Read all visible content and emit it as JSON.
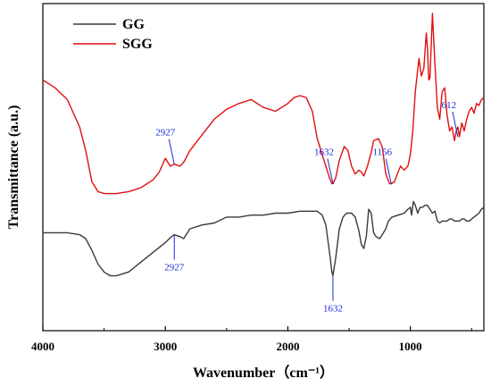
{
  "chart_data": {
    "type": "line",
    "xlabel": "Wavenumber（cm⁻¹）",
    "ylabel": "Transmittance (a.u.)",
    "xlim": [
      4000,
      400
    ],
    "x_reversed": true,
    "x_ticks": [
      4000,
      3000,
      2000,
      1000
    ],
    "x_tick_labels": [
      "4000",
      "3000",
      "2000",
      "1000"
    ],
    "y_ticks_shown": false,
    "grid": false,
    "legend_position": "top-left",
    "colors": {
      "GG": "#3a3a3a",
      "SGG": "#e01010",
      "annotation": "#1a2bd6"
    },
    "series": [
      {
        "name": "SGG",
        "x": [
          4000,
          3900,
          3800,
          3700,
          3650,
          3600,
          3550,
          3500,
          3400,
          3300,
          3200,
          3100,
          3050,
          3000,
          2960,
          2927,
          2880,
          2850,
          2800,
          2700,
          2600,
          2500,
          2400,
          2300,
          2200,
          2100,
          2000,
          1950,
          1900,
          1850,
          1800,
          1760,
          1700,
          1660,
          1640,
          1632,
          1610,
          1580,
          1540,
          1510,
          1480,
          1450,
          1420,
          1400,
          1380,
          1350,
          1320,
          1300,
          1260,
          1230,
          1200,
          1170,
          1156,
          1130,
          1100,
          1080,
          1050,
          1020,
          1000,
          980,
          960,
          930,
          910,
          890,
          870,
          860,
          850,
          840,
          820,
          800,
          780,
          760,
          740,
          720,
          700,
          680,
          660,
          640,
          625,
          612,
          600,
          580,
          560,
          540,
          520,
          500,
          480,
          460,
          440,
          420,
          400
        ],
        "y": [
          0.86,
          0.82,
          0.76,
          0.62,
          0.5,
          0.34,
          0.29,
          0.28,
          0.28,
          0.29,
          0.31,
          0.35,
          0.39,
          0.46,
          0.42,
          0.43,
          0.42,
          0.44,
          0.5,
          0.58,
          0.66,
          0.71,
          0.74,
          0.76,
          0.72,
          0.7,
          0.74,
          0.77,
          0.78,
          0.77,
          0.7,
          0.56,
          0.44,
          0.36,
          0.33,
          0.33,
          0.36,
          0.45,
          0.52,
          0.5,
          0.42,
          0.38,
          0.4,
          0.39,
          0.37,
          0.42,
          0.49,
          0.55,
          0.56,
          0.52,
          0.38,
          0.33,
          0.33,
          0.34,
          0.39,
          0.42,
          0.4,
          0.42,
          0.48,
          0.6,
          0.8,
          0.97,
          0.88,
          0.92,
          1.1,
          1.02,
          0.86,
          0.87,
          1.2,
          0.95,
          0.72,
          0.66,
          0.8,
          0.82,
          0.68,
          0.6,
          0.62,
          0.55,
          0.6,
          0.62,
          0.57,
          0.64,
          0.6,
          0.66,
          0.7,
          0.72,
          0.69,
          0.74,
          0.73,
          0.76,
          0.77
        ]
      },
      {
        "name": "GG",
        "x": [
          4000,
          3900,
          3800,
          3700,
          3650,
          3600,
          3550,
          3500,
          3450,
          3400,
          3300,
          3200,
          3100,
          3000,
          2950,
          2927,
          2880,
          2850,
          2800,
          2700,
          2600,
          2500,
          2400,
          2300,
          2200,
          2100,
          2000,
          1900,
          1850,
          1800,
          1760,
          1720,
          1690,
          1660,
          1640,
          1632,
          1610,
          1580,
          1550,
          1520,
          1480,
          1450,
          1420,
          1400,
          1380,
          1360,
          1340,
          1320,
          1300,
          1280,
          1250,
          1220,
          1200,
          1180,
          1150,
          1100,
          1050,
          1020,
          1000,
          990,
          975,
          960,
          940,
          920,
          900,
          880,
          860,
          840,
          820,
          800,
          780,
          760,
          740,
          720,
          700,
          680,
          660,
          640,
          620,
          600,
          580,
          560,
          540,
          520,
          500,
          480,
          460,
          440,
          420,
          400
        ],
        "y": [
          0.08,
          0.08,
          0.08,
          0.07,
          0.05,
          -0.01,
          -0.08,
          -0.12,
          -0.14,
          -0.14,
          -0.12,
          -0.07,
          -0.02,
          0.03,
          0.06,
          0.07,
          0.06,
          0.05,
          0.1,
          0.12,
          0.13,
          0.16,
          0.16,
          0.17,
          0.17,
          0.18,
          0.18,
          0.19,
          0.19,
          0.19,
          0.19,
          0.17,
          0.12,
          -0.02,
          -0.12,
          -0.14,
          -0.05,
          0.1,
          0.16,
          0.18,
          0.18,
          0.16,
          0.09,
          0.02,
          0.0,
          0.06,
          0.2,
          0.18,
          0.08,
          0.06,
          0.05,
          0.08,
          0.1,
          0.14,
          0.16,
          0.17,
          0.18,
          0.2,
          0.21,
          0.17,
          0.24,
          0.22,
          0.18,
          0.21,
          0.21,
          0.22,
          0.22,
          0.2,
          0.18,
          0.19,
          0.14,
          0.13,
          0.14,
          0.14,
          0.14,
          0.15,
          0.15,
          0.14,
          0.14,
          0.14,
          0.15,
          0.15,
          0.14,
          0.14,
          0.15,
          0.16,
          0.17,
          0.18,
          0.2,
          0.21
        ]
      }
    ],
    "legend": [
      {
        "name": "GG",
        "label": "GG"
      },
      {
        "name": "SGG",
        "label": "SGG"
      }
    ],
    "annotations": [
      {
        "series": "SGG",
        "label": "2927",
        "x": 2927,
        "y": 0.43,
        "side": "above"
      },
      {
        "series": "SGG",
        "label": "1632",
        "x": 1632,
        "y": 0.33,
        "side": "above"
      },
      {
        "series": "SGG",
        "label": "1156",
        "x": 1156,
        "y": 0.33,
        "side": "above"
      },
      {
        "series": "SGG",
        "label": "612",
        "x": 612,
        "y": 0.57,
        "side": "above"
      },
      {
        "series": "GG",
        "label": "2927",
        "x": 2927,
        "y": 0.07,
        "side": "below"
      },
      {
        "series": "GG",
        "label": "1632",
        "x": 1632,
        "y": -0.14,
        "side": "below"
      }
    ]
  }
}
